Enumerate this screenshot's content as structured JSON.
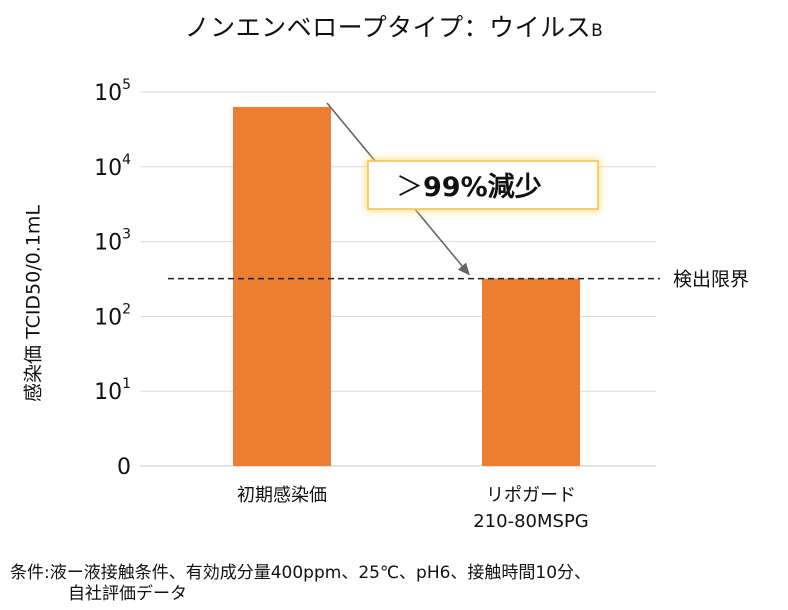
{
  "title": {
    "main": "ノンエンベロープタイプ：ウイルス",
    "sub": "B"
  },
  "chart_data": {
    "type": "bar",
    "title": "ノンエンベロープタイプ：ウイルスB",
    "ylabel": "感染価 TCID50/0.1mL",
    "yscale": "log",
    "ylim_exponent": [
      0,
      5
    ],
    "y_ticks": [
      {
        "base": "0",
        "exp": ""
      },
      {
        "base": "10",
        "exp": "1"
      },
      {
        "base": "10",
        "exp": "2"
      },
      {
        "base": "10",
        "exp": "3"
      },
      {
        "base": "10",
        "exp": "4"
      },
      {
        "base": "10",
        "exp": "5"
      }
    ],
    "categories": [
      "初期感染価",
      "リポガード 210-80MSPG"
    ],
    "category_lines": [
      [
        "初期感染価"
      ],
      [
        "リポガード",
        "210-80MSPG"
      ]
    ],
    "values": [
      63000,
      320
    ],
    "bar_color": "#ED7D31",
    "detection_limit": {
      "value": 320,
      "label": "検出限界"
    },
    "annotation": {
      "prefix": "＞",
      "text": "99%減少"
    },
    "grid": true
  },
  "conditions": {
    "line1": "条件:液ー液接触条件、有効成分量400ppm、25℃、pH6、接触時間10分、",
    "line2": "自社評価データ"
  }
}
